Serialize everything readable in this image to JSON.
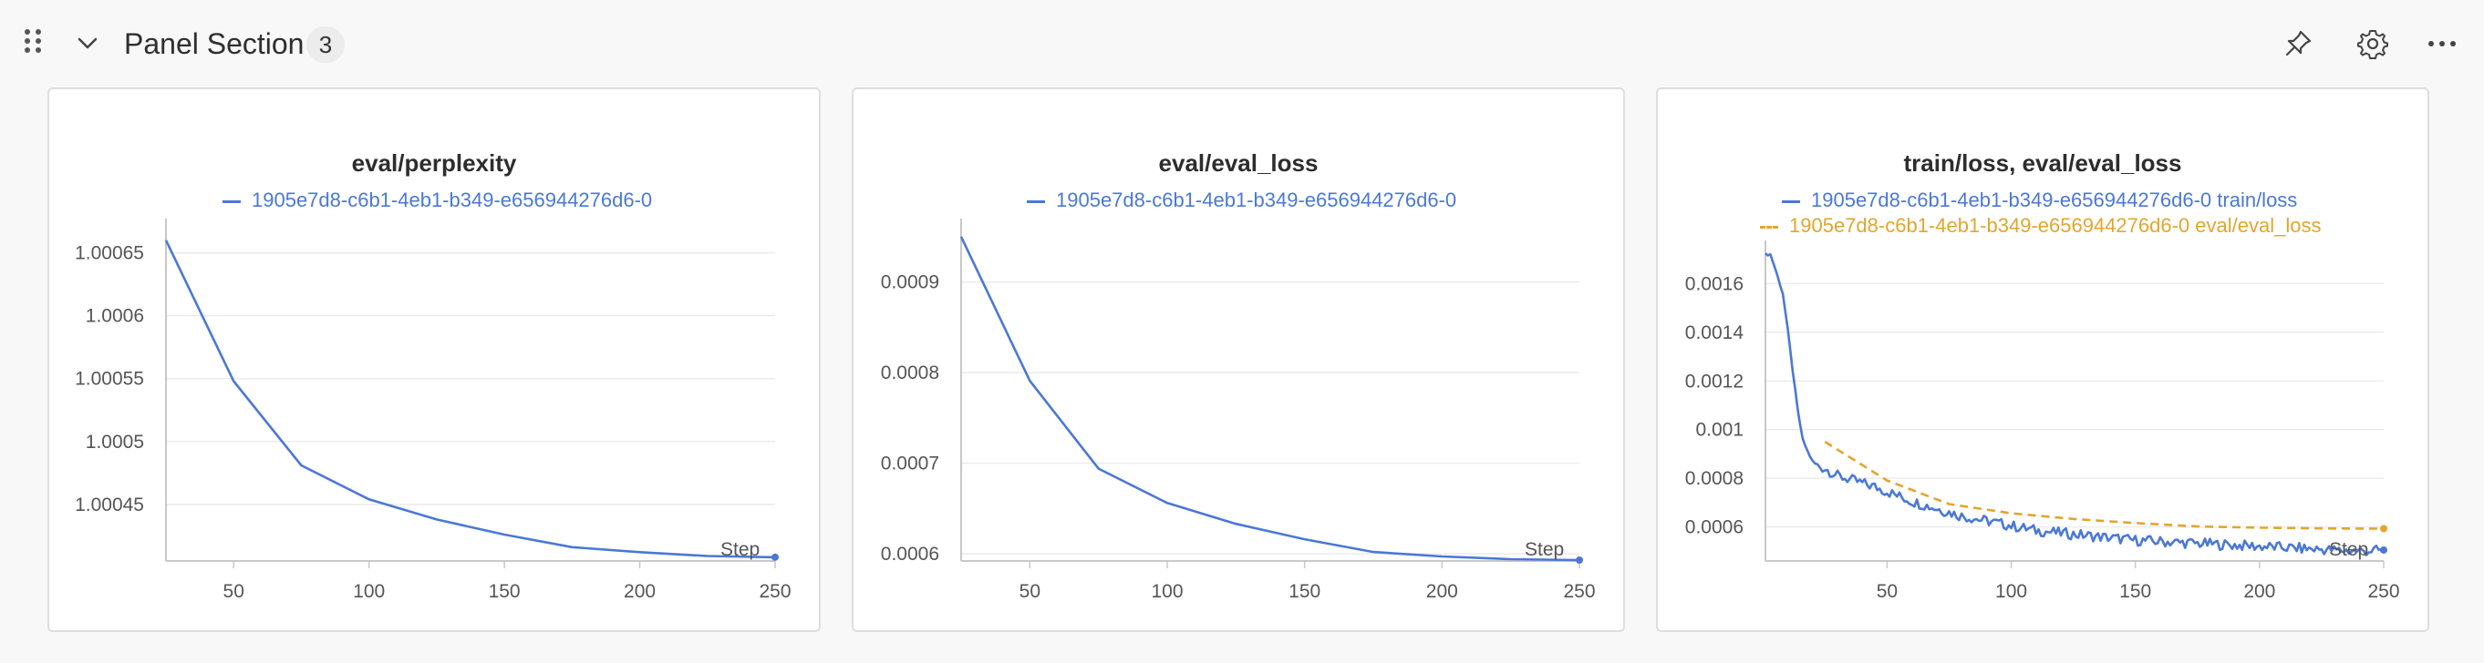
{
  "header": {
    "title": "Panel Section",
    "count": "3",
    "icons": [
      "drag-handle-icon",
      "chevron-down-icon",
      "pin-icon",
      "gear-icon",
      "more-icon"
    ]
  },
  "colors": {
    "series_blue": "#4b78d6",
    "series_orange": "#e3a52d",
    "grid": "#ececec",
    "axis": "#c8c8c8"
  },
  "panels": [
    {
      "title": "eval/perplexity",
      "legend": [
        "1905e7d8-c6b1-4eb1-b349-e656944276d6-0"
      ],
      "step_label": "Step"
    },
    {
      "title": "eval/eval_loss",
      "legend": [
        "1905e7d8-c6b1-4eb1-b349-e656944276d6-0"
      ],
      "step_label": "Step"
    },
    {
      "title": "train/loss, eval/eval_loss",
      "legend": [
        "1905e7d8-c6b1-4eb1-b349-e656944276d6-0 train/loss",
        "1905e7d8-c6b1-4eb1-b349-e656944276d6-0 eval/eval_loss"
      ],
      "step_label": "Step"
    }
  ],
  "chart_data": [
    {
      "type": "line",
      "title": "eval/perplexity",
      "xlabel": "Step",
      "ylabel": "",
      "xlim": [
        25,
        250
      ],
      "ylim": [
        1.000405,
        1.00067
      ],
      "xticks": [
        50,
        100,
        150,
        200,
        250
      ],
      "yticks": [
        1.00045,
        1.0005,
        1.00055,
        1.0006,
        1.00065
      ],
      "ytick_labels": [
        "1.00045",
        "1.0005",
        "1.00055",
        "1.0006",
        "1.00065"
      ],
      "grid": true,
      "legend_position": "top",
      "series": [
        {
          "name": "1905e7d8-c6b1-4eb1-b349-e656944276d6-0",
          "x": [
            25,
            50,
            75,
            100,
            125,
            150,
            175,
            200,
            225,
            250
          ],
          "y": [
            1.00066,
            1.000548,
            1.000481,
            1.000454,
            1.000438,
            1.000426,
            1.000416,
            1.000412,
            1.000409,
            1.000408
          ]
        }
      ]
    },
    {
      "type": "line",
      "title": "eval/eval_loss",
      "xlabel": "Step",
      "ylabel": "",
      "xlim": [
        25,
        250
      ],
      "ylim": [
        0.000592,
        0.00096
      ],
      "xticks": [
        50,
        100,
        150,
        200,
        250
      ],
      "yticks": [
        0.0006,
        0.0007,
        0.0008,
        0.0009
      ],
      "ytick_labels": [
        "0.0006",
        "0.0007",
        "0.0008",
        "0.0009"
      ],
      "grid": true,
      "legend_position": "top",
      "series": [
        {
          "name": "1905e7d8-c6b1-4eb1-b349-e656944276d6-0",
          "x": [
            25,
            50,
            75,
            100,
            125,
            150,
            175,
            200,
            225,
            250
          ],
          "y": [
            0.00095,
            0.000791,
            0.000694,
            0.000656,
            0.000633,
            0.000616,
            0.000602,
            0.000597,
            0.000594,
            0.000593
          ]
        }
      ]
    },
    {
      "type": "line",
      "title": "train/loss, eval/eval_loss",
      "xlabel": "Step",
      "ylabel": "",
      "xlim": [
        1,
        250
      ],
      "ylim": [
        0.00046,
        0.00174
      ],
      "xticks": [
        50,
        100,
        150,
        200,
        250
      ],
      "yticks": [
        0.0006,
        0.0008,
        0.001,
        0.0012,
        0.0014,
        0.0016
      ],
      "ytick_labels": [
        "0.0006",
        "0.0008",
        "0.001",
        "0.0012",
        "0.0014",
        "0.0016"
      ],
      "grid": true,
      "legend_position": "top",
      "series": [
        {
          "name": "1905e7d8-c6b1-4eb1-b349-e656944276d6-0 train/loss",
          "style": "solid",
          "x": [
            1,
            3,
            5,
            8,
            10,
            12,
            14,
            16,
            18,
            20,
            22,
            25,
            30,
            35,
            40,
            45,
            50,
            60,
            70,
            80,
            90,
            100,
            110,
            120,
            130,
            140,
            150,
            160,
            170,
            180,
            190,
            200,
            210,
            220,
            230,
            240,
            250
          ],
          "y": [
            0.00172,
            0.00172,
            0.00166,
            0.00156,
            0.00141,
            0.00124,
            0.00108,
            0.00096,
            0.00091,
            0.00087,
            0.00085,
            0.00084,
            0.00081,
            0.000795,
            0.00078,
            0.000765,
            0.000745,
            0.000705,
            0.000675,
            0.000645,
            0.000625,
            0.000605,
            0.000585,
            0.000575,
            0.000565,
            0.000555,
            0.000545,
            0.00054,
            0.000535,
            0.00053,
            0.000525,
            0.00052,
            0.000515,
            0.00051,
            0.000505,
            0.0005,
            0.000505
          ]
        },
        {
          "name": "1905e7d8-c6b1-4eb1-b349-e656944276d6-0 eval/eval_loss",
          "style": "dashed",
          "x": [
            25,
            50,
            75,
            100,
            125,
            150,
            175,
            200,
            225,
            250
          ],
          "y": [
            0.00095,
            0.000791,
            0.000694,
            0.000656,
            0.000633,
            0.000616,
            0.000602,
            0.000597,
            0.000594,
            0.000593
          ]
        }
      ]
    }
  ]
}
